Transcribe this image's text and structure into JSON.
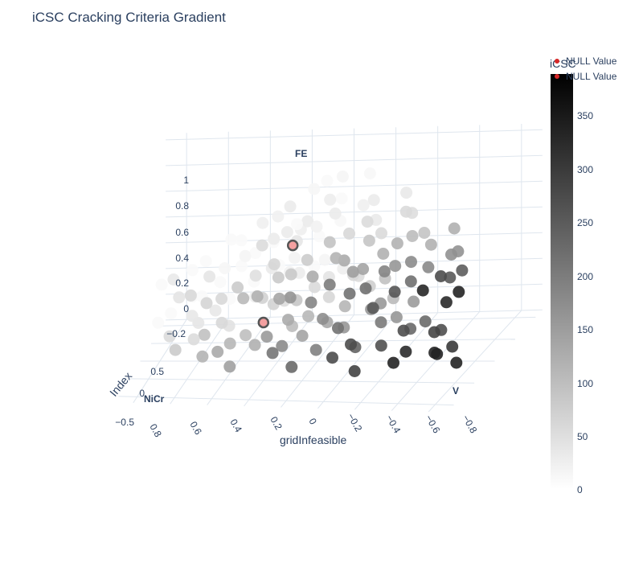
{
  "chart_data": {
    "type": "scatter3d",
    "title": "iCSC Cracking Criteria Gradient",
    "x_axis": {
      "title": "gridInfeasible",
      "ticks": [
        "0.8",
        "0.6",
        "0.4",
        "0.2",
        "0",
        "−0.2",
        "−0.4",
        "−0.6",
        "−0.8"
      ]
    },
    "y_axis": {
      "title": "Index",
      "ticks": [
        "0.5",
        "0",
        "−0.5"
      ]
    },
    "z_axis": {
      "title": "",
      "ticks": [
        "1",
        "0.8",
        "0.6",
        "0.4",
        "0.2",
        "0",
        "−0.2"
      ]
    },
    "corner_labels": [
      "FE",
      "NiCr",
      "V"
    ],
    "colorbar": {
      "title": "iCSC",
      "ticks": [
        "350",
        "300",
        "250",
        "200",
        "150",
        "100",
        "50",
        "0"
      ],
      "range": [
        0,
        380
      ],
      "colorscale": [
        "#ffffff",
        "#000000"
      ]
    },
    "legend": [
      "NULL Value",
      "NULL Value"
    ],
    "highlight_points": [
      {
        "name": "NULL Value",
        "x": 0.1,
        "z": 0.55
      },
      {
        "name": "NULL Value",
        "x": 0.25,
        "z": -0.05
      }
    ],
    "grid": true
  }
}
